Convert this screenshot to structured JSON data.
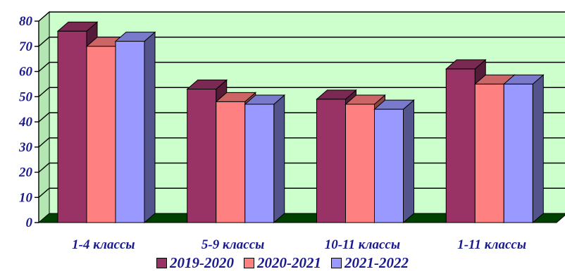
{
  "chart_data": {
    "type": "bar",
    "categories": [
      "1-4 классы",
      "5-9 классы",
      "10-11 классы",
      "1-11 классы"
    ],
    "series": [
      {
        "name": "2019-2020",
        "values": [
          76,
          53,
          49,
          61
        ],
        "color": "#993366"
      },
      {
        "name": "2020-2021",
        "values": [
          70,
          48,
          47,
          55
        ],
        "color": "#ff8080"
      },
      {
        "name": "2021-2022",
        "values": [
          72,
          47,
          45,
          55
        ],
        "color": "#9999ff"
      }
    ],
    "y_ticks": [
      "0",
      "10",
      "20",
      "30",
      "40",
      "50",
      "60",
      "70",
      "80"
    ],
    "ylim": [
      0,
      80
    ],
    "grid": true,
    "legend": "bottom",
    "three_d": true,
    "colors": {
      "wall": "#ccffcc",
      "floor": "#004000",
      "text": "#1a1a8c"
    }
  }
}
